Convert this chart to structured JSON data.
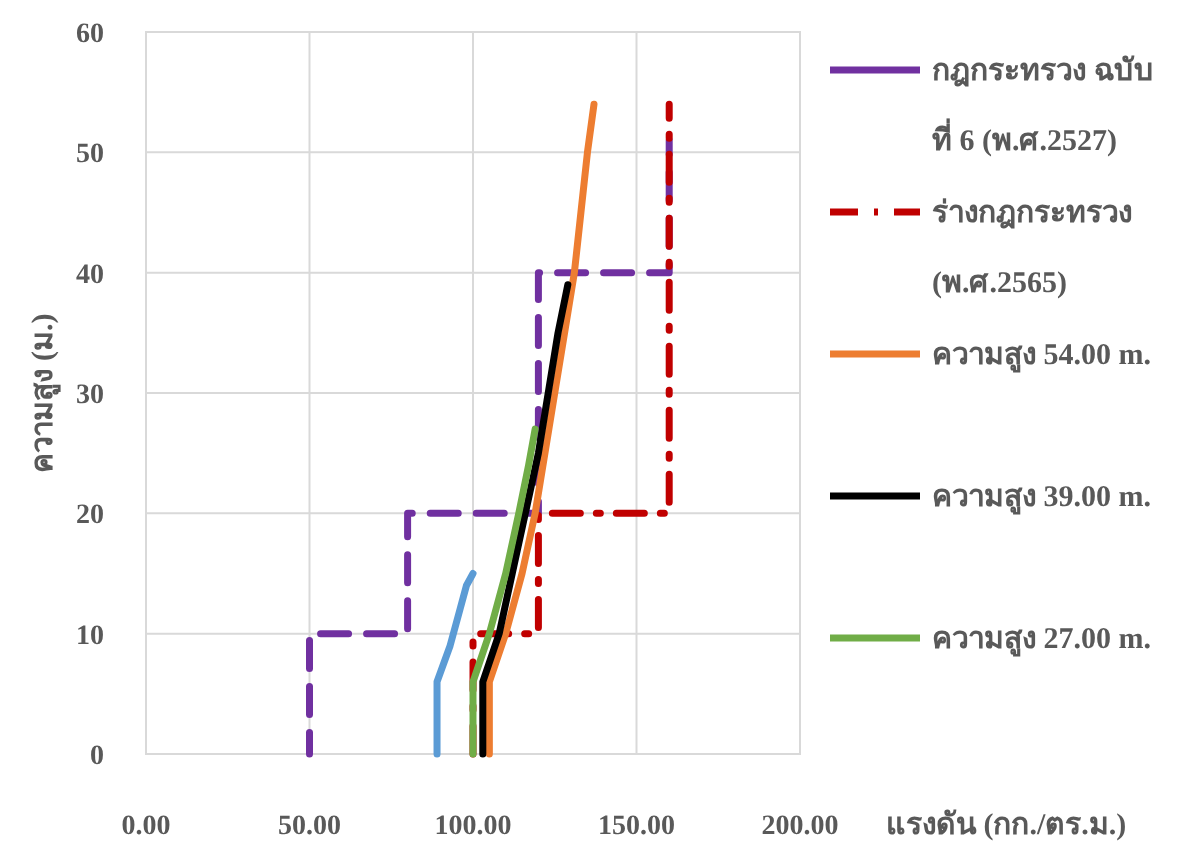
{
  "chart_data": {
    "type": "line",
    "xlabel": "แรงดัน (กก./ตร.ม.)",
    "ylabel": "ความสูง (ม.)",
    "xlim": [
      0,
      200
    ],
    "xticks": [
      {
        "value": 0,
        "label": "0.00"
      },
      {
        "value": 50,
        "label": "50.00"
      },
      {
        "value": 100,
        "label": "100.00"
      },
      {
        "value": 150,
        "label": "150.00"
      },
      {
        "value": 200,
        "label": "200.00"
      }
    ],
    "ylim": [
      0,
      60
    ],
    "yticks": [
      0,
      10,
      20,
      30,
      40,
      50,
      60
    ],
    "grid": true,
    "legend": "right",
    "marker": "none",
    "series": [
      {
        "name": "กฎกระทรวง ฉบับ ที่ 6 (พ.ศ.2527)",
        "color": "#7030a0",
        "line_style": "dashed",
        "x": [
          50,
          50,
          80,
          80,
          120,
          120,
          160,
          160
        ],
        "values": [
          0,
          10,
          10,
          20,
          20,
          40,
          40,
          51
        ]
      },
      {
        "name": "ร่างกฎกระทรวง (พ.ศ.2565)",
        "color": "#c00000",
        "line_style": "dashdot",
        "x": [
          100,
          100,
          120,
          120,
          160,
          160
        ],
        "values": [
          0,
          10,
          10,
          20,
          20,
          54
        ]
      },
      {
        "name": "ความสูง 54.00 m.",
        "color": "#ed7d31",
        "line_style": "solid",
        "x": [
          105,
          105,
          110,
          115,
          119,
          122,
          125,
          128,
          131,
          133,
          135,
          137
        ],
        "values": [
          0,
          6,
          10,
          15,
          20,
          25,
          30,
          35,
          40,
          45,
          50,
          54
        ]
      },
      {
        "name": "ความสูง 39.00 m.",
        "color": "#000000",
        "line_style": "solid",
        "x": [
          103,
          103,
          108,
          112,
          116,
          120,
          123,
          126,
          129
        ],
        "values": [
          0,
          6,
          10,
          15,
          20,
          25,
          30,
          35,
          39
        ]
      },
      {
        "name": "ความสูง 27.00 m.",
        "color": "#70ad47",
        "line_style": "solid",
        "x": [
          100,
          100,
          105,
          110,
          114,
          117,
          119
        ],
        "values": [
          0,
          6,
          10,
          15,
          20,
          24,
          27
        ]
      },
      {
        "color": "#5b9bd5",
        "line_style": "solid",
        "x": [
          89,
          89,
          93,
          96,
          98,
          100
        ],
        "values": [
          0,
          6,
          9,
          12,
          14,
          15
        ]
      }
    ]
  }
}
